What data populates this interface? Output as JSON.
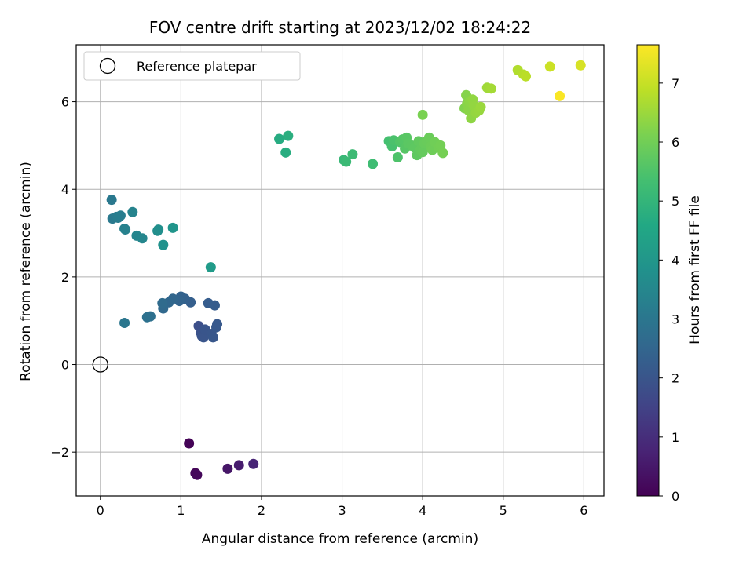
{
  "chart_data": {
    "type": "scatter",
    "title": "FOV centre drift starting at 2023/12/02 18:24:22",
    "xlabel": "Angular distance from reference (arcmin)",
    "ylabel": "Rotation from reference (arcmin)",
    "xlim": [
      -0.3,
      6.25
    ],
    "ylim": [
      -3.0,
      7.3
    ],
    "x_ticks": [
      0,
      1,
      2,
      3,
      4,
      5,
      6
    ],
    "x_tick_labels": [
      "0",
      "1",
      "2",
      "3",
      "4",
      "5",
      "6"
    ],
    "y_ticks": [
      -2,
      0,
      2,
      4,
      6
    ],
    "y_tick_labels": [
      "−2",
      "0",
      "2",
      "4",
      "6"
    ],
    "grid": true,
    "legend": {
      "placement": "top-left",
      "entries": [
        {
          "label": "Reference platepar",
          "marker": "open-circle"
        }
      ]
    },
    "reference_point": {
      "x": 0,
      "y": 0
    },
    "colorbar": {
      "label": "Hours from first FF file",
      "colormap": "viridis",
      "range": [
        0,
        7.65
      ],
      "ticks": [
        0,
        1,
        2,
        3,
        4,
        5,
        6,
        7
      ],
      "tick_labels": [
        "0",
        "1",
        "2",
        "3",
        "4",
        "5",
        "6",
        "7"
      ]
    },
    "series": [
      {
        "x": [
          1.1,
          1.18,
          1.2,
          1.19,
          1.58,
          1.72,
          1.9,
          1.22,
          1.25,
          1.26,
          1.28,
          1.3,
          1.38,
          1.4,
          1.44,
          1.45,
          1.42,
          1.34,
          1.12,
          1.05,
          1.0,
          0.98,
          0.9,
          0.85,
          0.78,
          0.77,
          0.62,
          0.58,
          0.3,
          0.14,
          0.15,
          0.2,
          0.22,
          0.25,
          0.3,
          0.31,
          0.4,
          0.45,
          0.52,
          0.71,
          0.72,
          0.78,
          0.9,
          1.37,
          2.22,
          2.3,
          2.33,
          3.02,
          3.05,
          3.13,
          3.38,
          3.58,
          3.62,
          3.64,
          3.69,
          3.72,
          3.75,
          3.78,
          3.8,
          3.82,
          3.86,
          3.9,
          3.93,
          3.95,
          3.97,
          4.0,
          4.02,
          4.05,
          4.08,
          4.1,
          4.12,
          4.15,
          4.2,
          4.22,
          4.25,
          4.0,
          4.52,
          4.54,
          4.55,
          4.57,
          4.58,
          4.6,
          4.62,
          4.64,
          4.66,
          4.7,
          4.72,
          4.8,
          4.85,
          5.18,
          5.25,
          5.28,
          5.58,
          5.7,
          5.96
        ],
        "y": [
          -1.8,
          -2.48,
          -2.52,
          -2.5,
          -2.38,
          -2.3,
          -2.27,
          0.88,
          0.72,
          0.65,
          0.62,
          0.8,
          0.7,
          0.62,
          0.85,
          0.92,
          1.35,
          1.4,
          1.42,
          1.5,
          1.55,
          1.45,
          1.5,
          1.42,
          1.28,
          1.4,
          1.1,
          1.08,
          0.95,
          3.76,
          3.33,
          3.37,
          3.35,
          3.4,
          3.1,
          3.08,
          3.48,
          2.94,
          2.88,
          3.05,
          3.08,
          2.73,
          3.12,
          2.22,
          5.15,
          4.84,
          5.22,
          4.67,
          4.63,
          4.8,
          4.58,
          5.1,
          4.98,
          5.12,
          4.73,
          5.08,
          5.14,
          4.93,
          5.18,
          5.05,
          5.0,
          4.95,
          4.78,
          5.1,
          4.9,
          4.85,
          5.05,
          5.1,
          5.18,
          4.98,
          4.9,
          5.08,
          4.95,
          5.0,
          4.83,
          5.7,
          5.85,
          6.15,
          5.95,
          5.8,
          6.0,
          5.62,
          6.05,
          5.9,
          5.75,
          5.8,
          5.88,
          6.32,
          6.3,
          6.72,
          6.62,
          6.58,
          6.8,
          6.13,
          6.83
        ],
        "c": [
          0.05,
          0.1,
          0.12,
          0.15,
          0.45,
          0.6,
          0.8,
          1.85,
          1.9,
          1.95,
          2.0,
          2.02,
          2.05,
          2.08,
          2.1,
          2.12,
          2.2,
          2.25,
          2.3,
          2.35,
          2.4,
          2.45,
          2.5,
          2.55,
          2.6,
          2.65,
          2.8,
          2.85,
          3.0,
          3.05,
          3.1,
          3.15,
          3.18,
          3.22,
          3.3,
          3.35,
          3.4,
          3.45,
          3.5,
          3.7,
          3.75,
          3.85,
          3.95,
          4.15,
          4.7,
          4.75,
          4.8,
          5.1,
          5.15,
          5.2,
          5.25,
          5.35,
          5.4,
          5.45,
          5.5,
          5.55,
          5.6,
          5.62,
          5.65,
          5.68,
          5.7,
          5.72,
          5.75,
          5.78,
          5.8,
          5.82,
          5.85,
          5.88,
          5.9,
          5.92,
          5.95,
          5.98,
          6.0,
          6.02,
          6.05,
          6.1,
          6.2,
          6.25,
          6.28,
          6.3,
          6.32,
          6.35,
          6.38,
          6.4,
          6.42,
          6.45,
          6.48,
          6.55,
          6.6,
          6.75,
          6.8,
          6.85,
          7.05,
          7.6,
          7.2
        ]
      }
    ]
  }
}
